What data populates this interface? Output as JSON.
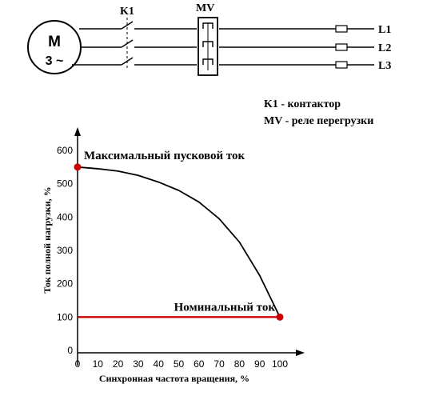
{
  "circuit": {
    "motor_letter": "M",
    "motor_rating": "3 ~",
    "contactor_label": "K1",
    "relay_label": "MV",
    "lines": [
      "L1",
      "L2",
      "L3"
    ],
    "legend": [
      "K1 - контактор",
      "MV - реле перегрузки"
    ]
  },
  "colors": {
    "line": "#000000",
    "highlight": "#cc0000",
    "axis": "#000000"
  },
  "chart_data": {
    "type": "line",
    "xlabel": "Синхронная частота вращения, %",
    "ylabel": "Ток полной нагрузки, %",
    "xlim": [
      0,
      100
    ],
    "ylim": [
      0,
      600
    ],
    "xticks": [
      0,
      10,
      20,
      30,
      40,
      50,
      60,
      70,
      80,
      90,
      100
    ],
    "yticks": [
      0,
      100,
      200,
      300,
      400,
      500,
      600
    ],
    "grid": false,
    "series": [
      {
        "x": [
          0,
          10,
          20,
          30,
          40,
          50,
          60,
          70,
          80,
          90,
          100
        ],
        "y": [
          550,
          545,
          538,
          525,
          505,
          480,
          445,
          395,
          325,
          225,
          100
        ]
      },
      {
        "x": [
          0,
          100
        ],
        "y": [
          100,
          100
        ]
      }
    ],
    "annotations": [
      {
        "text": "Максимальный пусковой ток",
        "x": 0,
        "y": 550
      },
      {
        "text": "Номинальный ток",
        "x": 100,
        "y": 100
      }
    ]
  }
}
